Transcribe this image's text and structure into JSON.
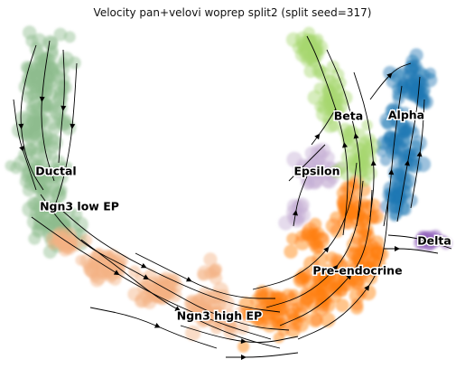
{
  "chart_data": {
    "type": "scatter",
    "title": "Velocity pan+velovi woprep split2 (split seed=317)",
    "xlabel": "",
    "ylabel": "",
    "grid": false,
    "axes_visible": false,
    "overlay": "velocity streamlines",
    "clusters": [
      {
        "name": "Ductal",
        "color": "#8fbc8f"
      },
      {
        "name": "Ngn3 low EP",
        "color": "#8fbc8f"
      },
      {
        "name": "Ngn3 high EP",
        "color": "#f4b183"
      },
      {
        "name": "Pre-endocrine",
        "color": "#ff7f0e"
      },
      {
        "name": "Epsilon",
        "color": "#c5b0d5"
      },
      {
        "name": "Beta",
        "color": "#a6d66f"
      },
      {
        "name": "Alpha",
        "color": "#1f77b4"
      },
      {
        "name": "Delta",
        "color": "#9467bd"
      }
    ]
  }
}
